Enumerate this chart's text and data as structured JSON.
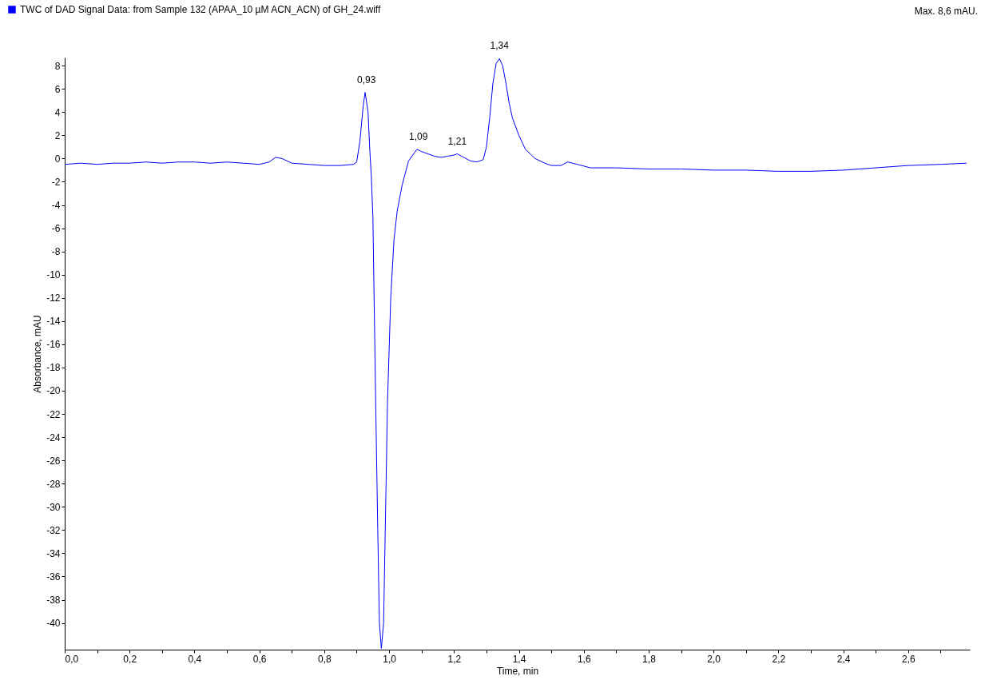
{
  "chart_data": {
    "type": "line",
    "xlabel": "Time, min",
    "ylabel": "Absorbance, mAU",
    "legend": "top left",
    "annotations": [
      "Max. 8,6 mAU.",
      {
        "text": "0,93",
        "x": 0.93,
        "y": 5.7
      },
      {
        "text": "1,09",
        "x": 1.09,
        "y": 0.8
      },
      {
        "text": "1,21",
        "x": 1.21,
        "y": 0.4
      },
      {
        "text": "1,34",
        "x": 1.34,
        "y": 8.6
      }
    ],
    "xlim": [
      0,
      2.79
    ],
    "ylim": [
      -42.3,
      8.7
    ],
    "xticks": [
      {
        "value": 0,
        "label": "0,0"
      },
      {
        "value": 0.1,
        "label": null
      },
      {
        "value": 0.2,
        "label": "0,2"
      },
      {
        "value": 0.3,
        "label": null
      },
      {
        "value": 0.4,
        "label": "0,4"
      },
      {
        "value": 0.5,
        "label": null
      },
      {
        "value": 0.6,
        "label": "0,6"
      },
      {
        "value": 0.7,
        "label": null
      },
      {
        "value": 0.8,
        "label": "0,8"
      },
      {
        "value": 0.9,
        "label": null
      },
      {
        "value": 1,
        "label": "1,0"
      },
      {
        "value": 1.1,
        "label": null
      },
      {
        "value": 1.2,
        "label": "1,2"
      },
      {
        "value": 1.3,
        "label": null
      },
      {
        "value": 1.4,
        "label": "1,4"
      },
      {
        "value": 1.5,
        "label": null
      },
      {
        "value": 1.6,
        "label": "1,6"
      },
      {
        "value": 1.7,
        "label": null
      },
      {
        "value": 1.8,
        "label": "1,8"
      },
      {
        "value": 1.9,
        "label": null
      },
      {
        "value": 2,
        "label": "2,0"
      },
      {
        "value": 2.1,
        "label": null
      },
      {
        "value": 2.2,
        "label": "2,2"
      },
      {
        "value": 2.3,
        "label": null
      },
      {
        "value": 2.4,
        "label": "2,4"
      },
      {
        "value": 2.5,
        "label": null
      },
      {
        "value": 2.6,
        "label": "2,6"
      },
      {
        "value": 2.7,
        "label": null
      }
    ],
    "yticks": [
      -40,
      -38,
      -36,
      -34,
      -32,
      -30,
      -28,
      -26,
      -24,
      -22,
      -20,
      -18,
      -16,
      -14,
      -12,
      -10,
      -8,
      -6,
      -4,
      -2,
      0,
      2,
      4,
      6,
      8
    ],
    "series": [
      {
        "name": "TWC of DAD Signal Data: from Sample 132 (APAA_10 µM ACN_ACN) of GH_24.wiff",
        "color": "#0000ff",
        "x": [
          0,
          0.05,
          0.1,
          0.15,
          0.2,
          0.25,
          0.3,
          0.35,
          0.4,
          0.45,
          0.5,
          0.55,
          0.6,
          0.63,
          0.65,
          0.67,
          0.7,
          0.75,
          0.8,
          0.85,
          0.89,
          0.9,
          0.91,
          0.92,
          0.926,
          0.935,
          0.94,
          0.945,
          0.95,
          0.958,
          0.965,
          0.97,
          0.976,
          0.983,
          0.995,
          1.005,
          1.015,
          1.025,
          1.04,
          1.06,
          1.086,
          1.1,
          1.12,
          1.14,
          1.16,
          1.18,
          1.2,
          1.21,
          1.23,
          1.25,
          1.27,
          1.29,
          1.3,
          1.31,
          1.32,
          1.33,
          1.34,
          1.35,
          1.36,
          1.37,
          1.38,
          1.4,
          1.42,
          1.45,
          1.48,
          1.5,
          1.53,
          1.55,
          1.58,
          1.62,
          1.7,
          1.8,
          1.9,
          2,
          2.1,
          2.2,
          2.3,
          2.4,
          2.5,
          2.6,
          2.7,
          2.78
        ],
        "values": [
          -0.5,
          -0.4,
          -0.5,
          -0.4,
          -0.4,
          -0.3,
          -0.4,
          -0.3,
          -0.3,
          -0.4,
          -0.3,
          -0.4,
          -0.5,
          -0.3,
          0.1,
          0,
          -0.4,
          -0.5,
          -0.6,
          -0.6,
          -0.5,
          -0.3,
          1.5,
          4.5,
          5.7,
          4,
          1,
          -1.5,
          -5,
          -20,
          -32,
          -40,
          -42.2,
          -40,
          -21,
          -12,
          -7,
          -4.5,
          -2.3,
          -0.2,
          0.8,
          0.6,
          0.4,
          0.2,
          0.1,
          0.2,
          0.3,
          0.4,
          0.1,
          -0.2,
          -0.3,
          -0.1,
          1,
          3.5,
          6.5,
          8.2,
          8.6,
          8,
          6.5,
          4.8,
          3.5,
          2,
          0.8,
          0,
          -0.4,
          -0.6,
          -0.6,
          -0.3,
          -0.5,
          -0.8,
          -0.8,
          -0.9,
          -0.9,
          -1,
          -1,
          -1.1,
          -1.1,
          -1,
          -0.8,
          -0.6,
          -0.5,
          -0.4
        ]
      }
    ]
  }
}
